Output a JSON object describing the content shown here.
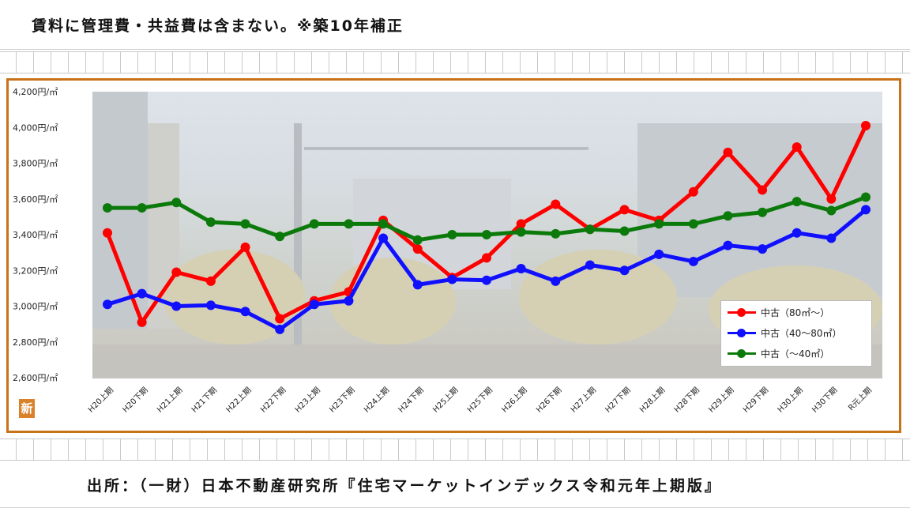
{
  "note": "賃料に管理費・共益費は含まない。※築10年補正",
  "source": "出所：（一財）日本不動産研究所『住宅マーケットインデックス令和元年上期版』",
  "badge": "新",
  "chart_data": {
    "type": "line",
    "categories": [
      "H20上期",
      "H20下期",
      "H21上期",
      "H21下期",
      "H22上期",
      "H22下期",
      "H23上期",
      "H23下期",
      "H24上期",
      "H24下期",
      "H25上期",
      "H25下期",
      "H26上期",
      "H26下期",
      "H27上期",
      "H27下期",
      "H28上期",
      "H28下期",
      "H29上期",
      "H29下期",
      "H30上期",
      "H30下期",
      "R元上期"
    ],
    "y_ticks": [
      "4,200円/㎡",
      "4,000円/㎡",
      "3,800円/㎡",
      "3,600円/㎡",
      "3,400円/㎡",
      "3,200円/㎡",
      "3,000円/㎡",
      "2,800円/㎡",
      "2,600円/㎡"
    ],
    "ylim": [
      2600,
      4200
    ],
    "grid": false,
    "legend_position": "bottom-right",
    "series": [
      {
        "name": "中古（80㎡～）",
        "color": "#ff0000",
        "values": [
          3410,
          2910,
          3190,
          3140,
          3330,
          2930,
          3030,
          3080,
          3480,
          3320,
          3160,
          3270,
          3460,
          3570,
          3430,
          3540,
          3480,
          3640,
          3860,
          3650,
          3890,
          3600,
          4010
        ]
      },
      {
        "name": "中古（40～80㎡）",
        "color": "#1010ff",
        "values": [
          3010,
          3070,
          3000,
          3005,
          2970,
          2870,
          3010,
          3030,
          3380,
          3120,
          3150,
          3145,
          3210,
          3140,
          3230,
          3200,
          3290,
          3250,
          3340,
          3320,
          3410,
          3380,
          3540
        ]
      },
      {
        "name": "中古（～40㎡）",
        "color": "#0b7a0b",
        "values": [
          3550,
          3550,
          3580,
          3470,
          3460,
          3390,
          3460,
          3460,
          3460,
          3370,
          3400,
          3400,
          3415,
          3405,
          3430,
          3420,
          3460,
          3460,
          3505,
          3525,
          3585,
          3535,
          3610
        ]
      }
    ]
  }
}
